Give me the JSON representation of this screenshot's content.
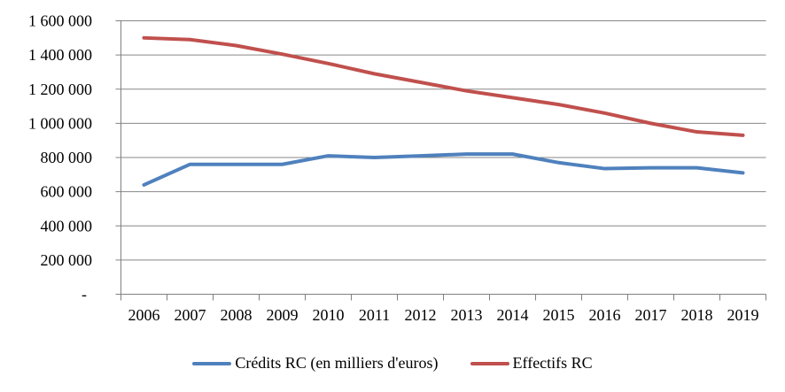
{
  "chart_data": {
    "type": "line",
    "title": "",
    "xlabel": "",
    "ylabel": "",
    "categories": [
      "2006",
      "2007",
      "2008",
      "2009",
      "2010",
      "2011",
      "2012",
      "2013",
      "2014",
      "2015",
      "2016",
      "2017",
      "2018",
      "2019"
    ],
    "series": [
      {
        "name": "Crédits RC (en milliers d'euros)",
        "color": "#4F81BD",
        "values": [
          640000,
          760000,
          760000,
          760000,
          810000,
          800000,
          810000,
          820000,
          820000,
          770000,
          735000,
          740000,
          740000,
          710000
        ]
      },
      {
        "name": "Effectifs RC",
        "color": "#C0504D",
        "values": [
          1500000,
          1490000,
          1455000,
          1405000,
          1350000,
          1290000,
          1240000,
          1190000,
          1150000,
          1110000,
          1060000,
          1000000,
          950000,
          930000
        ]
      }
    ],
    "ylim": [
      0,
      1600000
    ],
    "ytick_step": 200000,
    "ytick_labels": [
      "-",
      "200 000",
      "400 000",
      "600 000",
      "800 000",
      "1 000 000",
      "1 200 000",
      "1 400 000",
      "1 600 000"
    ],
    "grid": true,
    "legend_position": "bottom"
  },
  "colors": {
    "background": "#FFFFFF",
    "gridline": "#878787",
    "axis": "#808080",
    "text": "#000000"
  }
}
